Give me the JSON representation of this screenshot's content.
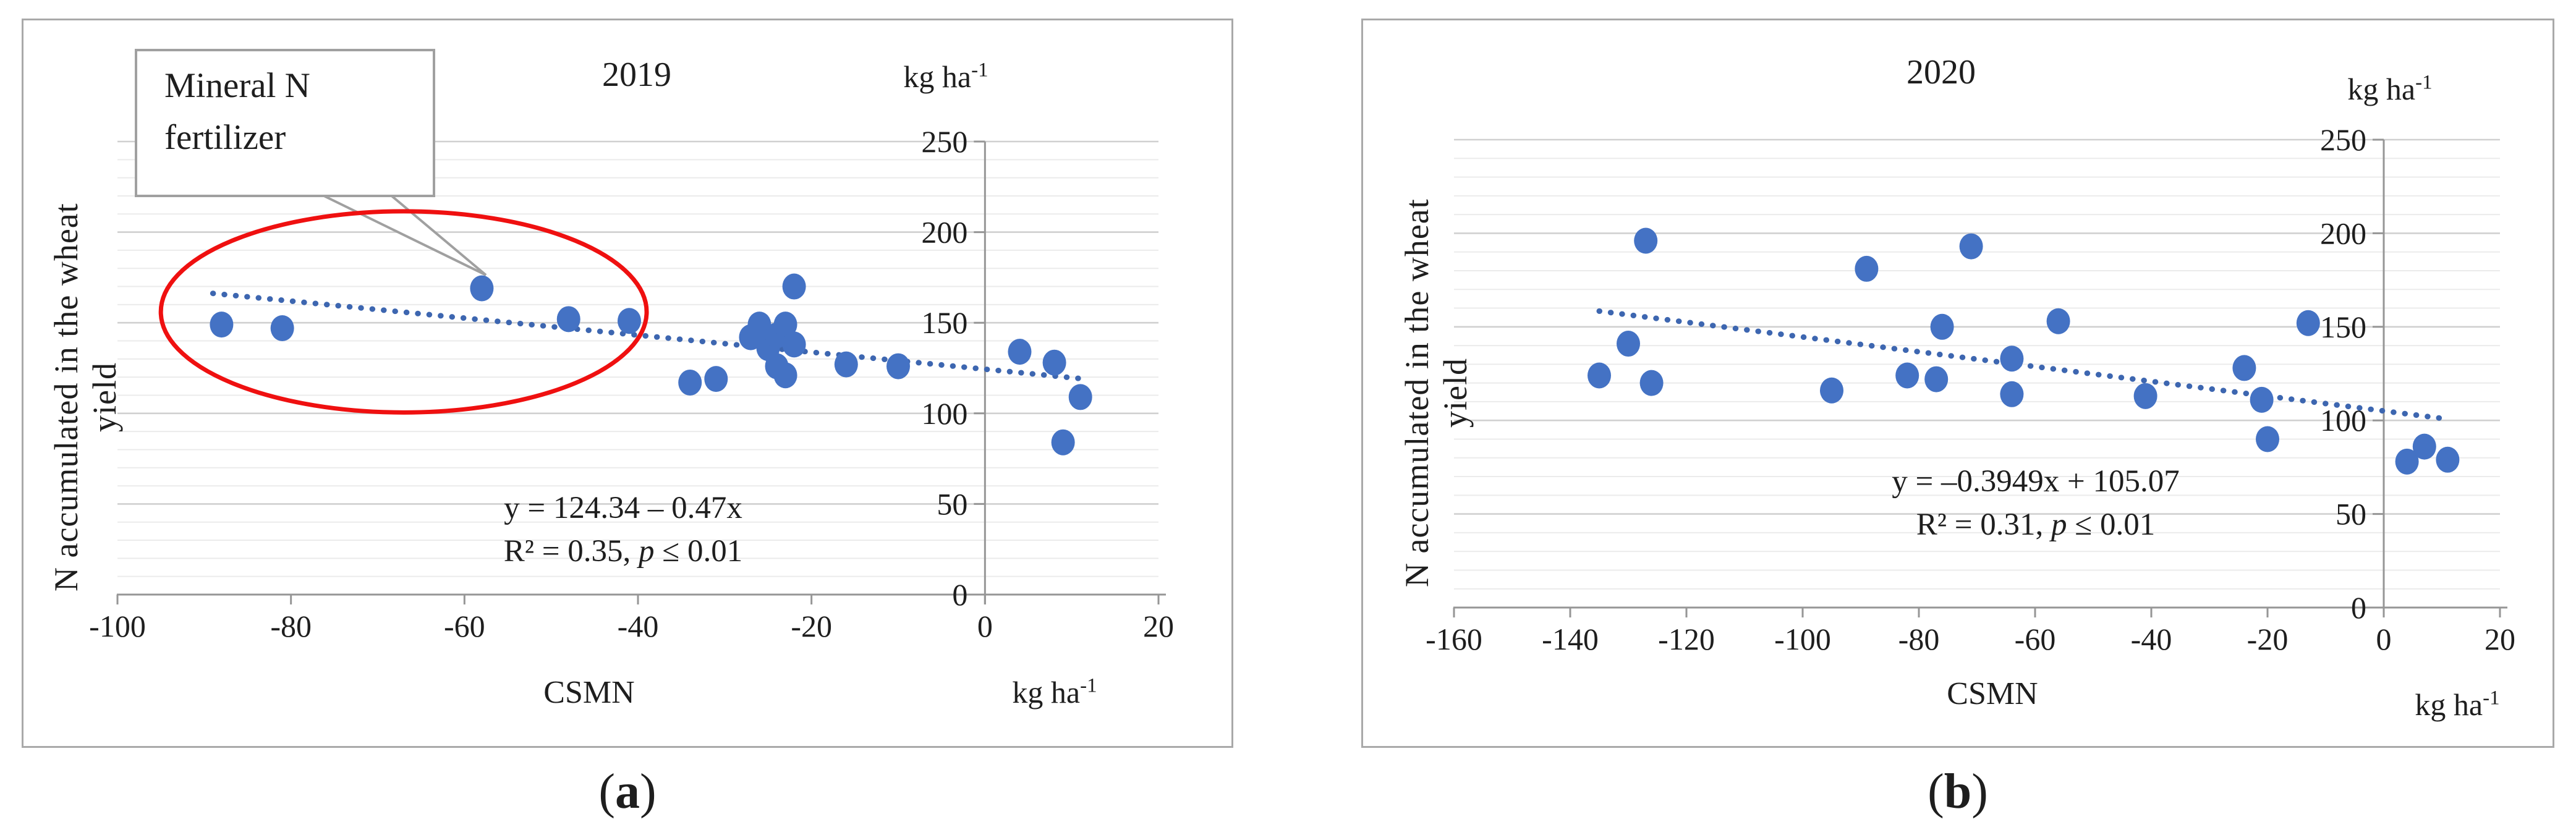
{
  "figure": {
    "panels": [
      {
        "label_open": "(",
        "label_letter": "a",
        "label_close": ")"
      },
      {
        "label_open": "(",
        "label_letter": "b",
        "label_close": ")"
      }
    ]
  },
  "chart_data": [
    {
      "type": "scatter",
      "title": "2019",
      "xlabel": "CSMN",
      "ylabel": "N accumulated in the wheat yield",
      "unit_top": {
        "base": "kg ha",
        "sup": "-1"
      },
      "unit_bottom": {
        "base": "kg ha",
        "sup": "-1"
      },
      "xlim": [
        -100,
        20
      ],
      "ylim": [
        0,
        250
      ],
      "xticks": [
        -100,
        -80,
        -60,
        -40,
        -20,
        0,
        20
      ],
      "yticks": [
        0,
        50,
        100,
        150,
        200,
        250
      ],
      "minor_grid_step": 10,
      "grid": true,
      "legend": "none",
      "equation": {
        "line1": "y = 124.34 – 0.47x",
        "r2_prefix": "R² = 0.35, ",
        "p": "p",
        "p_suffix": " ≤ 0.01"
      },
      "trendline": {
        "style": "dotted",
        "x1": -89,
        "y1": 166.2,
        "x2": 11,
        "y2": 119.2
      },
      "points": [
        [
          -88,
          149
        ],
        [
          -81,
          147
        ],
        [
          -58,
          169
        ],
        [
          -48,
          152
        ],
        [
          -41,
          151
        ],
        [
          -34,
          117
        ],
        [
          -31,
          119
        ],
        [
          -27,
          142
        ],
        [
          -26,
          149
        ],
        [
          -25,
          136
        ],
        [
          -24,
          143
        ],
        [
          -24,
          126
        ],
        [
          -23,
          149
        ],
        [
          -23,
          121
        ],
        [
          -22,
          170
        ],
        [
          -22,
          138
        ],
        [
          -16,
          127
        ],
        [
          -10,
          126
        ],
        [
          4,
          134
        ],
        [
          8,
          128
        ],
        [
          11,
          109
        ],
        [
          9,
          84
        ]
      ],
      "annotation": {
        "callout_line1": "Mineral N",
        "callout_line2": "fertilizer",
        "ellipse": {
          "cx": -67,
          "cy": 156,
          "rx": 28,
          "ry": 55.5
        }
      }
    },
    {
      "type": "scatter",
      "title": "2020",
      "xlabel": "CSMN",
      "ylabel": "N accumulated in the wheat yield",
      "unit_top": {
        "base": "kg ha",
        "sup": "-1"
      },
      "unit_bottom": {
        "base": "kg ha",
        "sup": "-1"
      },
      "xlim": [
        -160,
        20
      ],
      "ylim": [
        0,
        250
      ],
      "xticks": [
        -160,
        -140,
        -120,
        -100,
        -80,
        -60,
        -40,
        -20,
        0,
        20
      ],
      "yticks": [
        0,
        50,
        100,
        150,
        200,
        250
      ],
      "minor_grid_step": 10,
      "grid": true,
      "legend": "none",
      "equation": {
        "line1": "y = –0.3949x + 105.07",
        "r2_prefix": "R² = 0.31, ",
        "p": "p",
        "p_suffix": " ≤ 0.01"
      },
      "trendline": {
        "style": "dotted",
        "x1": -135,
        "y1": 158.4,
        "x2": 10,
        "y2": 101.1
      },
      "points": [
        [
          -135,
          124
        ],
        [
          -130,
          141
        ],
        [
          -127,
          196
        ],
        [
          -126,
          120
        ],
        [
          -95,
          116
        ],
        [
          -89,
          181
        ],
        [
          -82,
          124
        ],
        [
          -77,
          122
        ],
        [
          -76,
          150
        ],
        [
          -71,
          193
        ],
        [
          -64,
          133
        ],
        [
          -64,
          114
        ],
        [
          -56,
          153
        ],
        [
          -41,
          113
        ],
        [
          -24,
          128
        ],
        [
          -21,
          111
        ],
        [
          -20,
          90
        ],
        [
          -13,
          152
        ],
        [
          4,
          78
        ],
        [
          7,
          86
        ],
        [
          11,
          79
        ]
      ]
    }
  ],
  "colors": {
    "point_fill": "#4472c4",
    "trendline": "#3d66b0",
    "annotation_ellipse": "#ef1010",
    "grid_minor": "#ebebeb",
    "grid_major": "#d0d0d0",
    "axis": "#969696",
    "text": "#1e1e1e",
    "callout_border": "#a0a0a0",
    "panel_border": "#a9a9a9"
  }
}
